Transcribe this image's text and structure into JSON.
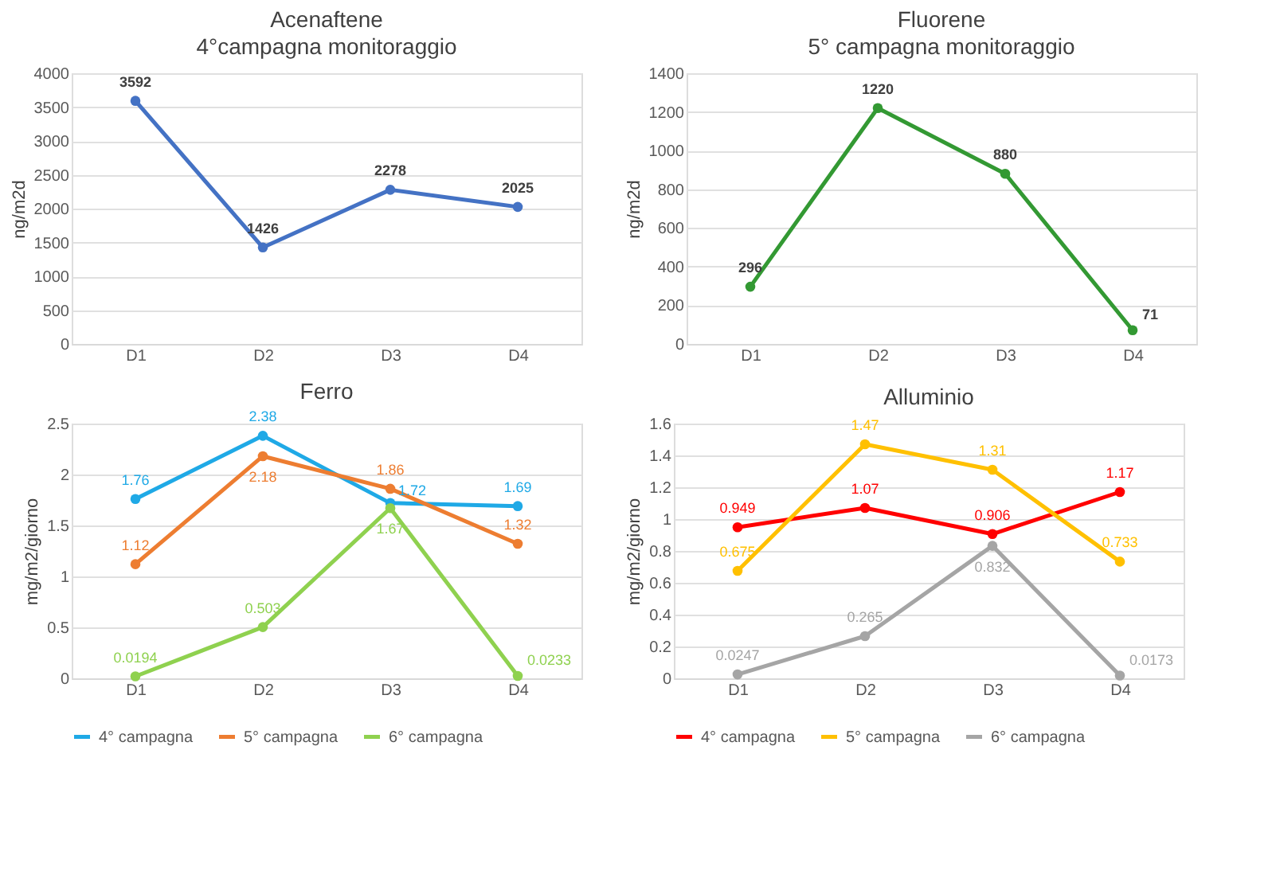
{
  "chart_data": [
    {
      "type": "line",
      "title": "Acenaftene",
      "subtitle": "4°campagna monitoraggio",
      "ylabel": "ng/m2d",
      "categories": [
        "D1",
        "D2",
        "D3",
        "D4"
      ],
      "values": [
        3592,
        1426,
        2278,
        2025
      ],
      "color": "#4472c4",
      "ylim": [
        0,
        4000
      ],
      "yticks": [
        0,
        500,
        1000,
        1500,
        2000,
        2500,
        3000,
        3500,
        4000
      ],
      "grid": "y",
      "data_labels": true,
      "marker": "circle",
      "legend": false
    },
    {
      "type": "line",
      "title": "Fluorene",
      "subtitle": "5° campagna monitoraggio",
      "ylabel": "ng/m2d",
      "categories": [
        "D1",
        "D2",
        "D3",
        "D4"
      ],
      "values": [
        296,
        1220,
        880,
        71
      ],
      "color": "#339933",
      "ylim": [
        0,
        1400
      ],
      "yticks": [
        0,
        200,
        400,
        600,
        800,
        1000,
        1200,
        1400
      ],
      "grid": "y",
      "data_labels": true,
      "marker": "circle",
      "legend": false
    },
    {
      "type": "line",
      "title": "Ferro",
      "ylabel": "mg/m2/giorno",
      "categories": [
        "D1",
        "D2",
        "D3",
        "D4"
      ],
      "series": [
        {
          "name": "4° campagna",
          "color": "#1fa9e6",
          "values": [
            1.76,
            2.38,
            1.72,
            1.69
          ]
        },
        {
          "name": "5° campagna",
          "color": "#ed7d31",
          "values": [
            1.12,
            2.18,
            1.86,
            1.32
          ]
        },
        {
          "name": "6° campagna",
          "color": "#8fd14f",
          "values": [
            0.0194,
            0.503,
            1.67,
            0.0233
          ]
        }
      ],
      "ylim": [
        0,
        2.5
      ],
      "yticks": [
        0,
        0.5,
        1,
        1.5,
        2,
        2.5
      ],
      "grid": "y",
      "data_labels": true,
      "marker": "circle",
      "legend": "bottom"
    },
    {
      "type": "line",
      "title": "Alluminio",
      "ylabel": "mg/m2/giorno",
      "categories": [
        "D1",
        "D2",
        "D3",
        "D4"
      ],
      "series": [
        {
          "name": "4° campagna",
          "color": "#ff0000",
          "values": [
            0.949,
            1.07,
            0.906,
            1.17
          ]
        },
        {
          "name": "5° campagna",
          "color": "#ffc000",
          "values": [
            0.675,
            1.47,
            1.31,
            0.733
          ]
        },
        {
          "name": "6° campagna",
          "color": "#a5a5a5",
          "values": [
            0.0247,
            0.265,
            0.832,
            0.0173
          ]
        }
      ],
      "ylim": [
        0,
        1.6
      ],
      "yticks": [
        0,
        0.2,
        0.4,
        0.6,
        0.8,
        1,
        1.2,
        1.4,
        1.6
      ],
      "grid": "y",
      "data_labels": true,
      "marker": "circle",
      "legend": "bottom"
    }
  ]
}
